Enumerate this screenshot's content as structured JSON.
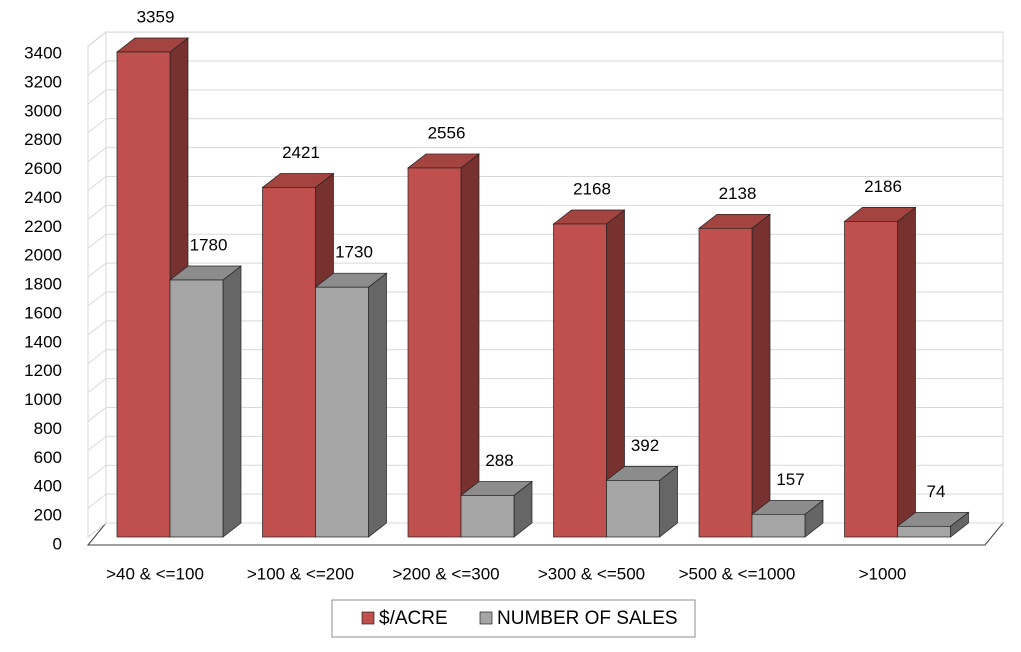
{
  "chart_data": {
    "type": "bar",
    "three_d": true,
    "categories": [
      ">40 & <=100",
      ">100 & <=200",
      ">200 & <=300",
      ">300 & <=500",
      ">500 & <=1000",
      ">1000"
    ],
    "series": [
      {
        "name": "$/ACRE",
        "color": "#c0504d",
        "values": [
          3359,
          2421,
          2556,
          2168,
          2138,
          2186
        ]
      },
      {
        "name": "NUMBER OF SALES",
        "color": "#a5a5a5",
        "values": [
          1780,
          1730,
          288,
          392,
          157,
          74
        ]
      }
    ],
    "ylim": [
      0,
      3400
    ],
    "yticks": [
      0,
      200,
      400,
      600,
      800,
      1000,
      1200,
      1400,
      1600,
      1800,
      2000,
      2200,
      2400,
      2600,
      2800,
      3000,
      3200,
      3400
    ],
    "grid": true,
    "legend": "bottom",
    "data_labels": true
  }
}
